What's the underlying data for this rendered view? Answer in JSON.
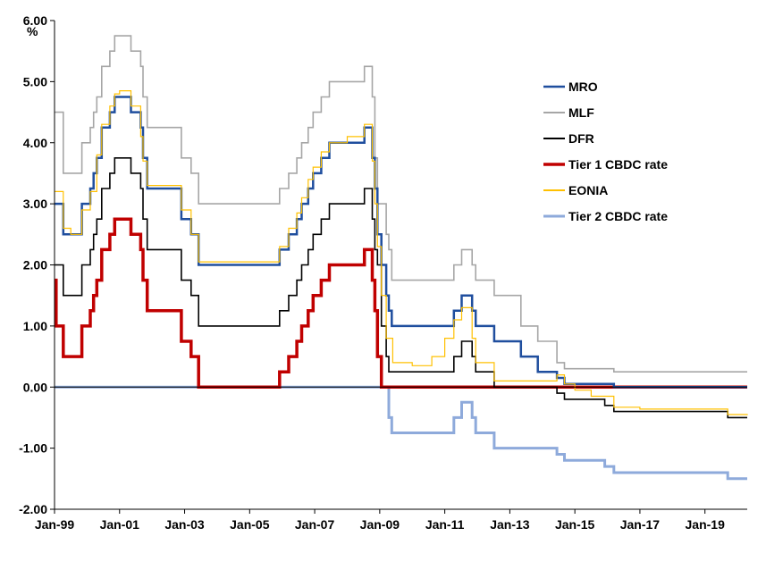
{
  "chart_data": {
    "type": "line",
    "unit_label": "%",
    "x_tick_labels": [
      "Jan-99",
      "Jan-01",
      "Jan-03",
      "Jan-05",
      "Jan-07",
      "Jan-09",
      "Jan-11",
      "Jan-13",
      "Jan-15",
      "Jan-17",
      "Jan-19"
    ],
    "x_tick_values": [
      1999,
      2001,
      2003,
      2005,
      2007,
      2009,
      2011,
      2013,
      2015,
      2017,
      2019
    ],
    "y_tick_labels": [
      "6.00",
      "5.00",
      "4.00",
      "3.00",
      "2.00",
      "1.00",
      "0.00",
      "-1.00",
      "-2.00"
    ],
    "y_tick_values": [
      6,
      5,
      4,
      3,
      2,
      1,
      0,
      -1,
      -2
    ],
    "xlim": [
      1999.0,
      2020.3
    ],
    "ylim": [
      -2,
      6
    ],
    "grid": false,
    "legend_placement": "right",
    "series": [
      {
        "name": "MRO",
        "color": "#1f4e9e",
        "points": [
          [
            1999.0,
            3.0
          ],
          [
            1999.27,
            2.5
          ],
          [
            1999.84,
            3.0
          ],
          [
            2000.1,
            3.25
          ],
          [
            2000.2,
            3.5
          ],
          [
            2000.3,
            3.75
          ],
          [
            2000.45,
            4.25
          ],
          [
            2000.7,
            4.5
          ],
          [
            2000.85,
            4.75
          ],
          [
            2001.35,
            4.5
          ],
          [
            2001.65,
            4.25
          ],
          [
            2001.72,
            3.75
          ],
          [
            2001.85,
            3.25
          ],
          [
            2002.9,
            2.75
          ],
          [
            2003.2,
            2.5
          ],
          [
            2003.43,
            2.0
          ],
          [
            2005.92,
            2.25
          ],
          [
            2006.2,
            2.5
          ],
          [
            2006.45,
            2.75
          ],
          [
            2006.6,
            3.0
          ],
          [
            2006.8,
            3.25
          ],
          [
            2006.95,
            3.5
          ],
          [
            2007.2,
            3.75
          ],
          [
            2007.45,
            4.0
          ],
          [
            2008.53,
            4.25
          ],
          [
            2008.77,
            3.75
          ],
          [
            2008.85,
            3.25
          ],
          [
            2008.93,
            2.5
          ],
          [
            2009.05,
            2.0
          ],
          [
            2009.2,
            1.5
          ],
          [
            2009.28,
            1.25
          ],
          [
            2009.37,
            1.0
          ],
          [
            2011.28,
            1.25
          ],
          [
            2011.52,
            1.5
          ],
          [
            2011.84,
            1.25
          ],
          [
            2011.95,
            1.0
          ],
          [
            2012.52,
            0.75
          ],
          [
            2013.34,
            0.5
          ],
          [
            2013.86,
            0.25
          ],
          [
            2014.45,
            0.15
          ],
          [
            2014.68,
            0.05
          ],
          [
            2016.2,
            0.0
          ],
          [
            2020.3,
            0.0
          ]
        ]
      },
      {
        "name": "MLF",
        "color": "#a6a6a6",
        "points": [
          [
            1999.0,
            4.5
          ],
          [
            1999.27,
            3.5
          ],
          [
            1999.84,
            4.0
          ],
          [
            2000.1,
            4.25
          ],
          [
            2000.2,
            4.5
          ],
          [
            2000.3,
            4.75
          ],
          [
            2000.45,
            5.25
          ],
          [
            2000.7,
            5.5
          ],
          [
            2000.85,
            5.75
          ],
          [
            2001.35,
            5.5
          ],
          [
            2001.65,
            5.25
          ],
          [
            2001.72,
            4.75
          ],
          [
            2001.85,
            4.25
          ],
          [
            2002.9,
            3.75
          ],
          [
            2003.2,
            3.5
          ],
          [
            2003.43,
            3.0
          ],
          [
            2005.92,
            3.25
          ],
          [
            2006.2,
            3.5
          ],
          [
            2006.45,
            3.75
          ],
          [
            2006.6,
            4.0
          ],
          [
            2006.8,
            4.25
          ],
          [
            2006.95,
            4.5
          ],
          [
            2007.2,
            4.75
          ],
          [
            2007.45,
            5.0
          ],
          [
            2008.53,
            5.25
          ],
          [
            2008.77,
            4.75
          ],
          [
            2008.85,
            3.75
          ],
          [
            2008.93,
            3.0
          ],
          [
            2009.05,
            3.0
          ],
          [
            2009.2,
            2.5
          ],
          [
            2009.28,
            2.25
          ],
          [
            2009.37,
            1.75
          ],
          [
            2011.28,
            2.0
          ],
          [
            2011.52,
            2.25
          ],
          [
            2011.84,
            2.0
          ],
          [
            2011.95,
            1.75
          ],
          [
            2012.52,
            1.5
          ],
          [
            2013.34,
            1.0
          ],
          [
            2013.86,
            0.75
          ],
          [
            2014.45,
            0.4
          ],
          [
            2014.68,
            0.3
          ],
          [
            2016.2,
            0.25
          ],
          [
            2020.3,
            0.25
          ]
        ]
      },
      {
        "name": "DFR",
        "color": "#000000",
        "points": [
          [
            1999.0,
            2.0
          ],
          [
            1999.27,
            1.5
          ],
          [
            1999.84,
            2.0
          ],
          [
            2000.1,
            2.25
          ],
          [
            2000.2,
            2.5
          ],
          [
            2000.3,
            2.75
          ],
          [
            2000.45,
            3.25
          ],
          [
            2000.7,
            3.5
          ],
          [
            2000.85,
            3.75
          ],
          [
            2001.35,
            3.5
          ],
          [
            2001.65,
            3.25
          ],
          [
            2001.72,
            2.75
          ],
          [
            2001.85,
            2.25
          ],
          [
            2002.9,
            1.75
          ],
          [
            2003.2,
            1.5
          ],
          [
            2003.43,
            1.0
          ],
          [
            2005.92,
            1.25
          ],
          [
            2006.2,
            1.5
          ],
          [
            2006.45,
            1.75
          ],
          [
            2006.6,
            2.0
          ],
          [
            2006.8,
            2.25
          ],
          [
            2006.95,
            2.5
          ],
          [
            2007.2,
            2.75
          ],
          [
            2007.45,
            3.0
          ],
          [
            2008.53,
            3.25
          ],
          [
            2008.77,
            2.75
          ],
          [
            2008.85,
            2.25
          ],
          [
            2008.93,
            2.0
          ],
          [
            2009.05,
            1.0
          ],
          [
            2009.2,
            0.5
          ],
          [
            2009.28,
            0.25
          ],
          [
            2011.28,
            0.5
          ],
          [
            2011.52,
            0.75
          ],
          [
            2011.84,
            0.5
          ],
          [
            2011.95,
            0.25
          ],
          [
            2012.52,
            0.0
          ],
          [
            2014.45,
            -0.1
          ],
          [
            2014.68,
            -0.2
          ],
          [
            2015.92,
            -0.3
          ],
          [
            2016.2,
            -0.4
          ],
          [
            2019.7,
            -0.5
          ],
          [
            2020.3,
            -0.5
          ]
        ]
      },
      {
        "name": "Tier 1 CBDC rate",
        "color": "#c00000",
        "points": [
          [
            1999.0,
            1.75
          ],
          [
            1999.05,
            1.0
          ],
          [
            1999.27,
            0.5
          ],
          [
            1999.84,
            1.0
          ],
          [
            2000.1,
            1.25
          ],
          [
            2000.2,
            1.5
          ],
          [
            2000.3,
            1.75
          ],
          [
            2000.45,
            2.25
          ],
          [
            2000.7,
            2.5
          ],
          [
            2000.85,
            2.75
          ],
          [
            2001.35,
            2.5
          ],
          [
            2001.65,
            2.25
          ],
          [
            2001.72,
            1.75
          ],
          [
            2001.85,
            1.25
          ],
          [
            2002.9,
            0.75
          ],
          [
            2003.2,
            0.5
          ],
          [
            2003.43,
            0.0
          ],
          [
            2005.92,
            0.25
          ],
          [
            2006.2,
            0.5
          ],
          [
            2006.45,
            0.75
          ],
          [
            2006.6,
            1.0
          ],
          [
            2006.8,
            1.25
          ],
          [
            2006.95,
            1.5
          ],
          [
            2007.2,
            1.75
          ],
          [
            2007.45,
            2.0
          ],
          [
            2008.53,
            2.25
          ],
          [
            2008.77,
            1.75
          ],
          [
            2008.85,
            1.25
          ],
          [
            2008.93,
            0.5
          ],
          [
            2009.05,
            0.0
          ],
          [
            2020.3,
            0.0
          ]
        ]
      },
      {
        "name": "EONIA",
        "color": "#ffc000",
        "points": [
          [
            1999.0,
            3.2
          ],
          [
            1999.27,
            2.6
          ],
          [
            1999.5,
            2.5
          ],
          [
            1999.84,
            2.9
          ],
          [
            2000.1,
            3.2
          ],
          [
            2000.3,
            3.8
          ],
          [
            2000.45,
            4.3
          ],
          [
            2000.7,
            4.6
          ],
          [
            2000.85,
            4.8
          ],
          [
            2001.0,
            4.85
          ],
          [
            2001.35,
            4.6
          ],
          [
            2001.65,
            4.1
          ],
          [
            2001.72,
            3.7
          ],
          [
            2001.85,
            3.3
          ],
          [
            2002.5,
            3.3
          ],
          [
            2002.9,
            2.9
          ],
          [
            2003.2,
            2.5
          ],
          [
            2003.43,
            2.05
          ],
          [
            2005.0,
            2.05
          ],
          [
            2005.92,
            2.3
          ],
          [
            2006.2,
            2.6
          ],
          [
            2006.45,
            2.85
          ],
          [
            2006.6,
            3.1
          ],
          [
            2006.8,
            3.4
          ],
          [
            2006.95,
            3.6
          ],
          [
            2007.2,
            3.85
          ],
          [
            2007.45,
            4.0
          ],
          [
            2008.0,
            4.1
          ],
          [
            2008.53,
            4.3
          ],
          [
            2008.77,
            3.7
          ],
          [
            2008.85,
            3.0
          ],
          [
            2008.93,
            2.3
          ],
          [
            2009.05,
            1.5
          ],
          [
            2009.2,
            0.8
          ],
          [
            2009.4,
            0.4
          ],
          [
            2010.0,
            0.35
          ],
          [
            2010.6,
            0.5
          ],
          [
            2011.0,
            0.8
          ],
          [
            2011.28,
            1.1
          ],
          [
            2011.52,
            1.3
          ],
          [
            2011.84,
            0.8
          ],
          [
            2011.95,
            0.4
          ],
          [
            2012.52,
            0.1
          ],
          [
            2013.5,
            0.1
          ],
          [
            2014.45,
            0.2
          ],
          [
            2014.68,
            0.05
          ],
          [
            2015.0,
            -0.05
          ],
          [
            2015.5,
            -0.15
          ],
          [
            2016.2,
            -0.33
          ],
          [
            2017.0,
            -0.36
          ],
          [
            2019.7,
            -0.45
          ],
          [
            2020.3,
            -0.46
          ]
        ]
      },
      {
        "name": "Tier 2 CBDC rate",
        "color": "#8eaadb",
        "points": [
          [
            1999.0,
            0.0
          ],
          [
            2009.1,
            0.0
          ],
          [
            2009.28,
            -0.5
          ],
          [
            2009.37,
            -0.75
          ],
          [
            2011.28,
            -0.5
          ],
          [
            2011.52,
            -0.25
          ],
          [
            2011.84,
            -0.5
          ],
          [
            2011.95,
            -0.75
          ],
          [
            2012.52,
            -1.0
          ],
          [
            2014.45,
            -1.1
          ],
          [
            2014.68,
            -1.2
          ],
          [
            2015.92,
            -1.3
          ],
          [
            2016.2,
            -1.4
          ],
          [
            2019.7,
            -1.5
          ],
          [
            2020.3,
            -1.5
          ]
        ]
      }
    ]
  }
}
